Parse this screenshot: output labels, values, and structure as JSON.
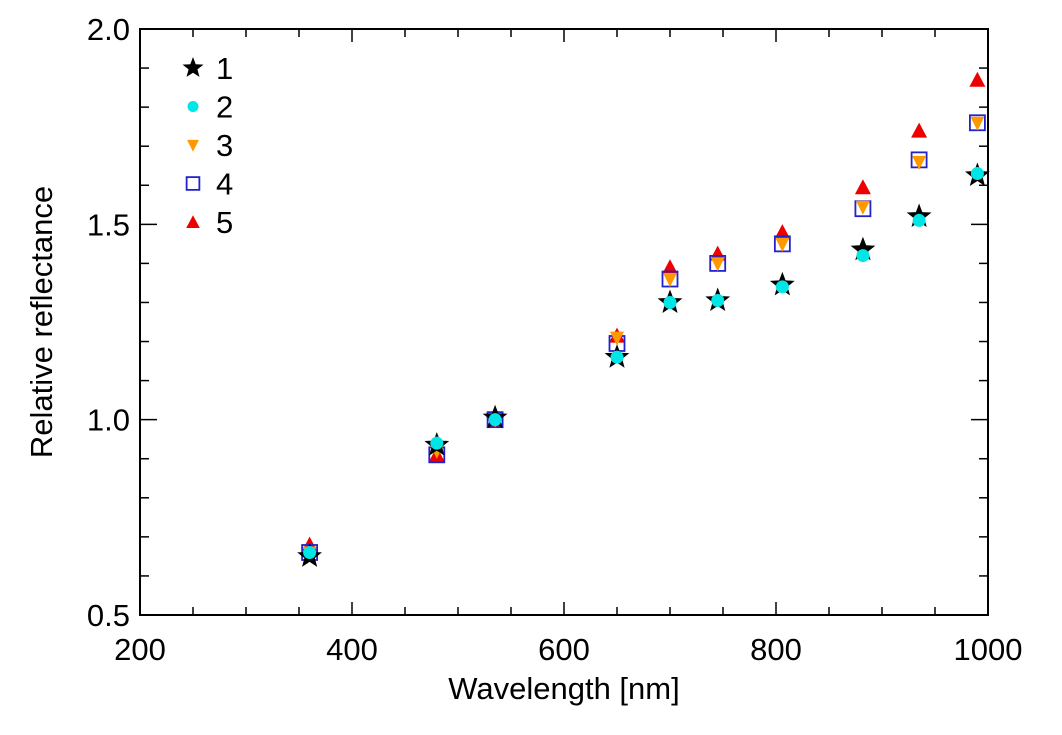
{
  "chart_data": {
    "type": "scatter",
    "title": "",
    "xlabel": "Wavelength [nm]",
    "ylabel": "Relative reflectance",
    "xlim": [
      200,
      1000
    ],
    "ylim": [
      0.5,
      2.0
    ],
    "xticks": [
      200,
      400,
      600,
      800,
      1000
    ],
    "xtick_labels": [
      "200",
      "400",
      "600",
      "800",
      "1000"
    ],
    "yticks": [
      0.5,
      1.0,
      1.5,
      2.0
    ],
    "ytick_labels": [
      "0.5",
      "1.0",
      "1.5",
      "2.0"
    ],
    "x_minor_step": 50,
    "y_minor_step": 0.1,
    "grid": false,
    "legend_position": "top-left",
    "x": [
      360,
      480,
      535,
      650,
      700,
      745,
      806,
      882,
      935,
      990
    ],
    "series": [
      {
        "name": "1",
        "marker": "star",
        "color": "#000000",
        "filled": true,
        "values": [
          0.65,
          0.935,
          1.005,
          1.16,
          1.3,
          1.305,
          1.345,
          1.435,
          1.52,
          1.625
        ]
      },
      {
        "name": "2",
        "marker": "circle",
        "color": "#00e5e5",
        "filled": true,
        "values": [
          0.66,
          0.94,
          1.0,
          1.16,
          1.3,
          1.305,
          1.34,
          1.42,
          1.51,
          1.63
        ]
      },
      {
        "name": "3",
        "marker": "triangle-down",
        "color": "#ff9900",
        "filled": true,
        "values": [
          0.66,
          0.92,
          1.0,
          1.21,
          1.36,
          1.4,
          1.45,
          1.545,
          1.66,
          1.76
        ]
      },
      {
        "name": "4",
        "marker": "square",
        "color": "#2222cc",
        "filled": false,
        "values": [
          0.66,
          0.91,
          1.0,
          1.195,
          1.36,
          1.4,
          1.45,
          1.54,
          1.665,
          1.76
        ]
      },
      {
        "name": "5",
        "marker": "triangle-up",
        "color": "#ee0000",
        "filled": true,
        "values": [
          0.68,
          0.91,
          1.0,
          1.215,
          1.39,
          1.425,
          1.48,
          1.595,
          1.74,
          1.87
        ]
      }
    ],
    "draw_order": [
      4,
      3,
      2,
      0,
      1
    ]
  }
}
